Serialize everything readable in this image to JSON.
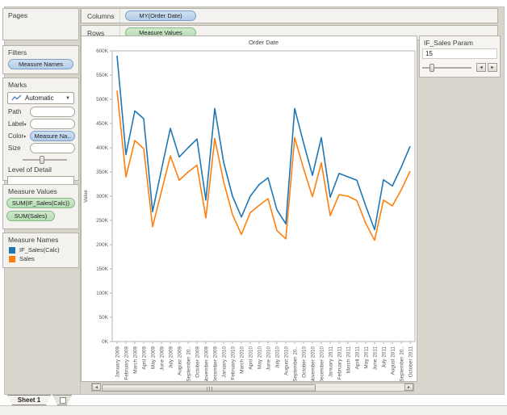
{
  "left_panel": {
    "pages": {
      "title": "Pages"
    },
    "filters": {
      "title": "Filters",
      "pill": "Measure Names"
    },
    "marks": {
      "title": "Marks",
      "mark_type": "Automatic",
      "path_label": "Path",
      "label_label": "Label",
      "color_label": "Color",
      "color_pill": "Measure Na..",
      "size_label": "Size",
      "lod_label": "Level of Detail"
    },
    "measure_values": {
      "title": "Measure Values",
      "pill1": "SUM(IF_Sales(Calc))",
      "pill2": "SUM(Sales)"
    },
    "measure_names": {
      "title": "Measure Names",
      "item1": "IF_Sales(Calc)",
      "item2": "Sales"
    }
  },
  "shelves": {
    "columns_label": "Columns",
    "columns_pill": "MY(Order Date)",
    "rows_label": "Rows",
    "rows_pill": "Measure Values"
  },
  "parameter": {
    "title": "IF_Sales Param",
    "value": "15",
    "left_arrow": "◄",
    "right_arrow": "►"
  },
  "scrollbar": {
    "left_arrow": "◄",
    "right_arrow": "►"
  },
  "tabs": {
    "sheet1": "Sheet 1"
  },
  "chart_data": {
    "type": "line",
    "title": "Order Date",
    "ylabel": "Value",
    "ylim": [
      0,
      600
    ],
    "yticks": [
      0,
      50,
      100,
      150,
      200,
      250,
      300,
      350,
      400,
      450,
      500,
      550,
      600
    ],
    "ytick_suffix": "K",
    "grid": false,
    "legend_position": "left-panel",
    "x": [
      "January 2009",
      "February 2009",
      "March 2009",
      "April 2009",
      "May 2009",
      "June 2009",
      "July 2009",
      "August 2009",
      "September 20..",
      "October 2009",
      "November 2009",
      "December 2009",
      "January 2010",
      "February 2010",
      "March 2010",
      "April 2010",
      "May 2010",
      "June 2010",
      "July 2010",
      "August 2010",
      "September 20..",
      "October 2010",
      "November 2010",
      "December 2010",
      "January 2011",
      "February 2011",
      "March 2011",
      "April 2011",
      "May 2011",
      "June 2011",
      "July 2011",
      "August 2011",
      "September 20..",
      "October 2011"
    ],
    "unit": "K",
    "series": [
      {
        "name": "IF_Sales(Calc)",
        "color": "#1f77b4",
        "values": [
          590,
          386,
          476,
          460,
          268,
          355,
          440,
          381,
          400,
          418,
          292,
          481,
          370,
          300,
          257,
          300,
          324,
          338,
          272,
          243,
          481,
          410,
          343,
          421,
          298,
          347,
          340,
          333,
          280,
          231,
          334,
          321,
          360,
          403
        ]
      },
      {
        "name": "Sales",
        "color": "#ff7f0e",
        "values": [
          518,
          340,
          415,
          398,
          237,
          310,
          383,
          333,
          350,
          364,
          255,
          419,
          330,
          262,
          221,
          266,
          281,
          295,
          229,
          212,
          421,
          357,
          299,
          369,
          260,
          303,
          300,
          291,
          244,
          209,
          292,
          280,
          313,
          352
        ]
      }
    ]
  }
}
